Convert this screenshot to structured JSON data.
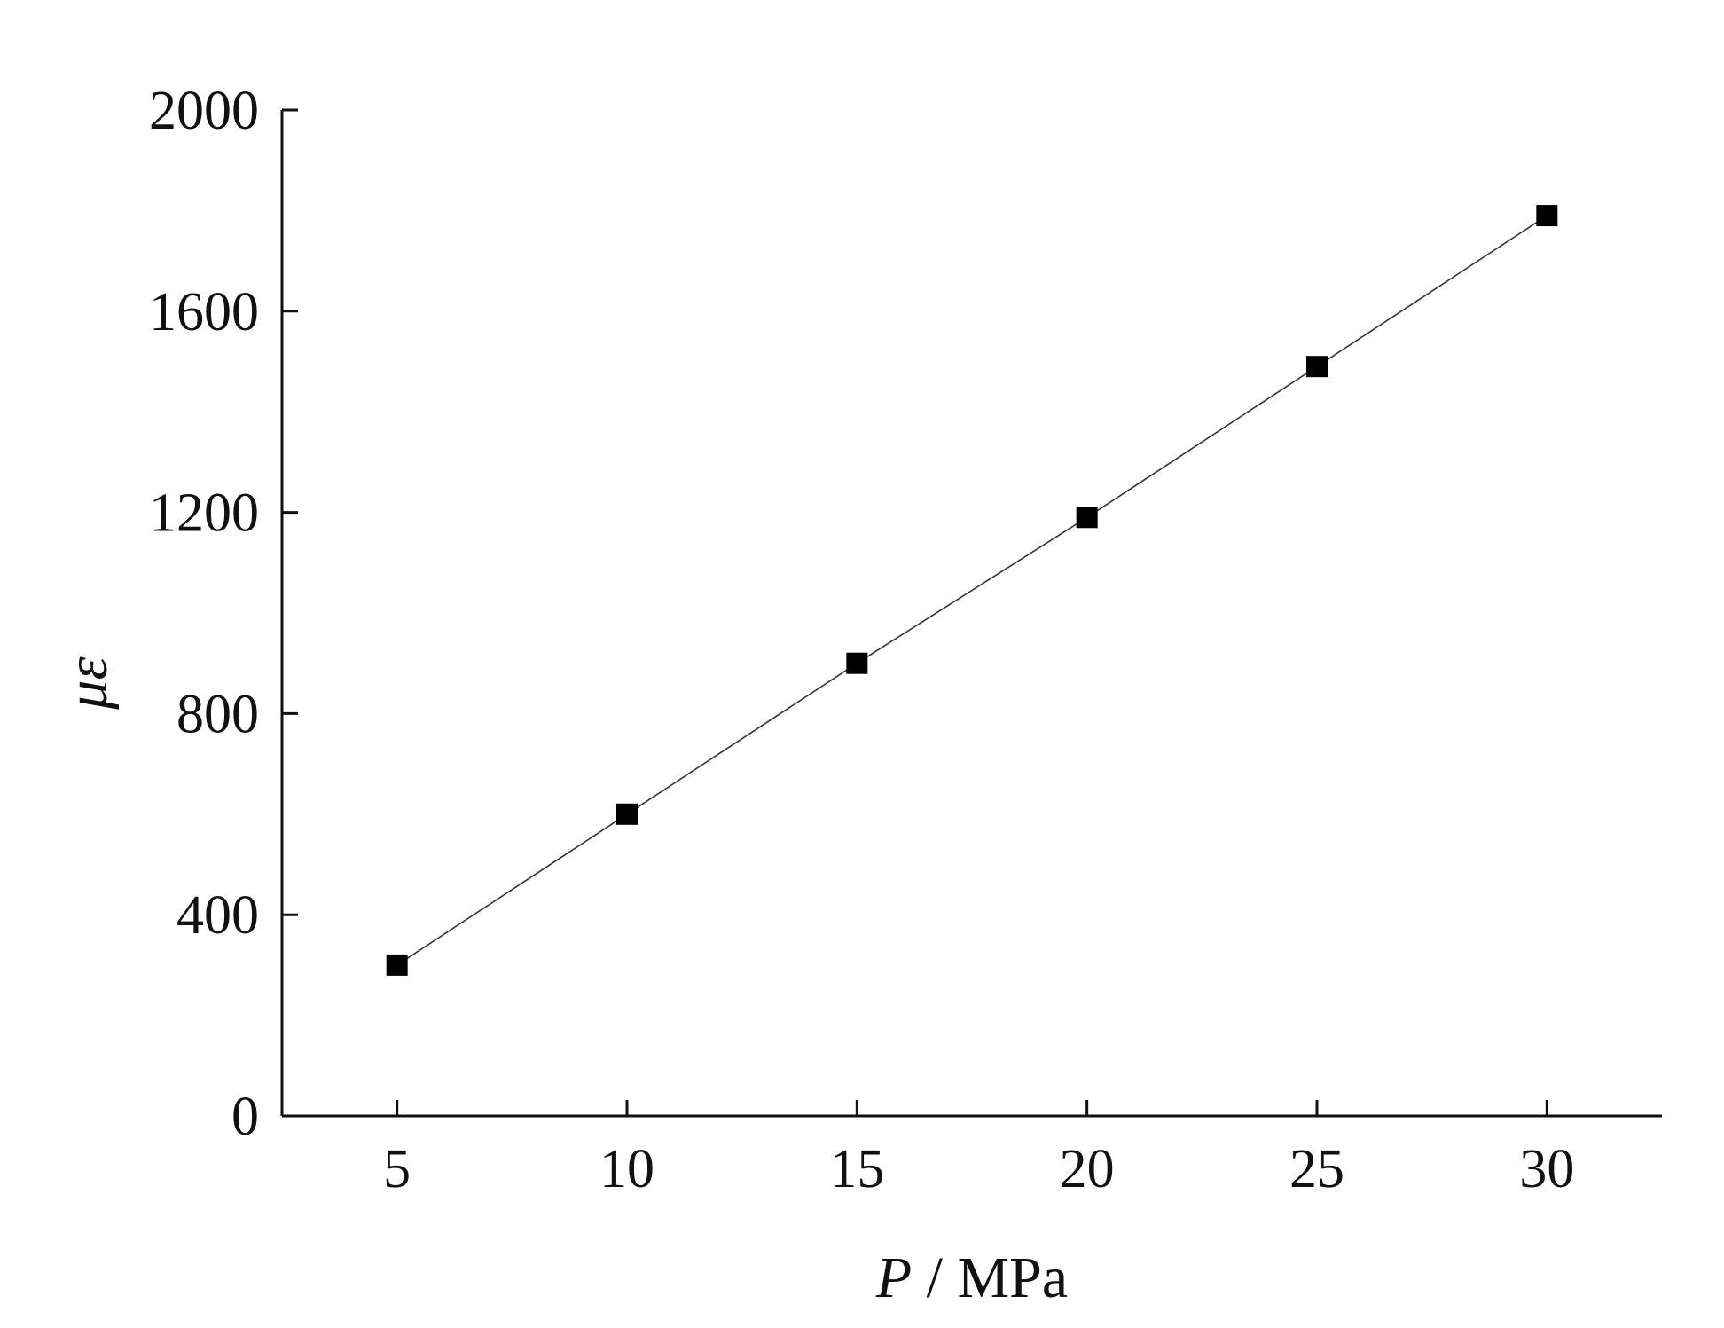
{
  "chart_data": {
    "type": "line",
    "title": "",
    "xlabel": {
      "symbol": "P",
      "separator": " / ",
      "unit": "MPa"
    },
    "ylabel": "με",
    "x": [
      5,
      10,
      15,
      20,
      25,
      30
    ],
    "series": [
      {
        "values": [
          300,
          600,
          900,
          1190,
          1490,
          1790
        ],
        "marker": "square",
        "color": "#000000"
      }
    ],
    "xlim": [
      2.5,
      32.5
    ],
    "ylim": [
      0,
      2000
    ],
    "xticks": [
      "5",
      "10",
      "15",
      "20",
      "25",
      "30"
    ],
    "yticks": [
      "0",
      "400",
      "800",
      "1200",
      "1600",
      "2000"
    ],
    "grid": false,
    "legend": "none",
    "colors": {
      "axis": "#111111",
      "line": "#333333",
      "marker": "#000000"
    }
  }
}
